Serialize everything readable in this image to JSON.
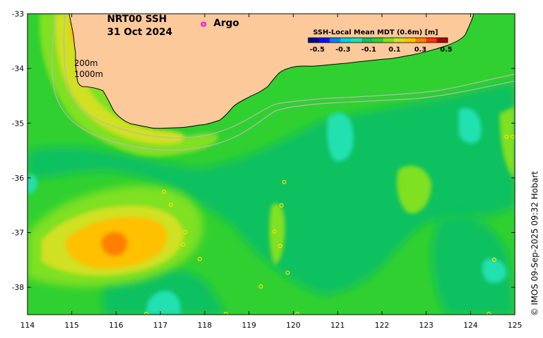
{
  "title": {
    "product": "NRT00 SSH",
    "date": "31 Oct 2024"
  },
  "legend": {
    "argo_symbol": "o",
    "argo_label": "Argo",
    "argo_color": "#ff00ff"
  },
  "colorbar": {
    "title": "SSH-Local Mean MDT (0.6m) [m]",
    "tick_labels": [
      "-0.5",
      "-0.3",
      "-0.1",
      "0.1",
      "0.3",
      "0.5"
    ],
    "colors": [
      "#00008f",
      "#0010ff",
      "#0080ff",
      "#00d0e0",
      "#20e0b0",
      "#10c060",
      "#30d030",
      "#80e020",
      "#d0e020",
      "#ffc000",
      "#ff8000",
      "#ff3000",
      "#b00000"
    ]
  },
  "isobaths": {
    "label_200": "200m",
    "label_1000": "1000m"
  },
  "axes": {
    "x_ticks": [
      "114",
      "115",
      "116",
      "117",
      "118",
      "119",
      "120",
      "121",
      "122",
      "123",
      "124",
      "125"
    ],
    "y_ticks": [
      "-33",
      "-34",
      "-35",
      "-36",
      "-37",
      "-38"
    ],
    "lon_range": [
      114,
      125
    ],
    "lat_range": [
      -38.5,
      -33
    ]
  },
  "credit": "© IMOS 09-Sep-2025 09:32 Hobart",
  "colors": {
    "land": "#fcc99b",
    "background_field": "#30d030"
  }
}
